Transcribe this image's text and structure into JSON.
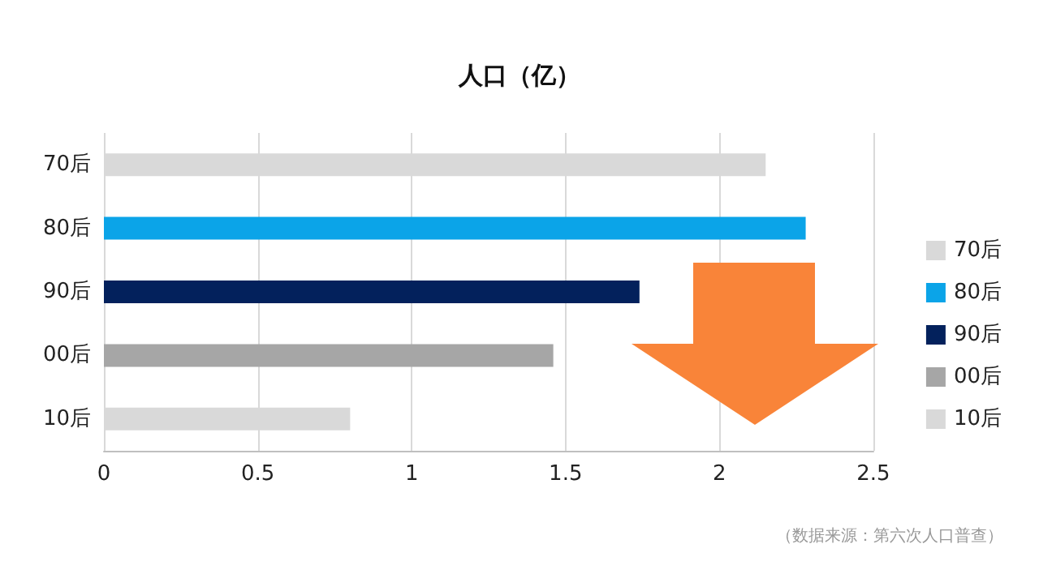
{
  "chart_data": {
    "type": "bar",
    "orientation": "horizontal",
    "title": "人口（亿）",
    "categories": [
      "70后",
      "80后",
      "90后",
      "00后",
      "10后"
    ],
    "series": [
      {
        "name": "70后",
        "color": "#d9d9d9",
        "values": [
          2.15,
          null,
          null,
          null,
          null
        ]
      },
      {
        "name": "80后",
        "color": "#0ba4e8",
        "values": [
          null,
          2.28,
          null,
          null,
          null
        ]
      },
      {
        "name": "90后",
        "color": "#03215c",
        "values": [
          null,
          null,
          1.74,
          null,
          null
        ]
      },
      {
        "name": "00后",
        "color": "#a6a6a6",
        "values": [
          null,
          null,
          null,
          1.46,
          null
        ]
      },
      {
        "name": "10后",
        "color": "#d9d9d9",
        "values": [
          null,
          null,
          null,
          null,
          0.8
        ]
      }
    ],
    "xlim": [
      0,
      2.5
    ],
    "xticks": [
      0,
      0.5,
      1,
      1.5,
      2,
      2.5
    ],
    "grid": "x",
    "legend": "right",
    "annotations": [
      "（数据来源：第六次人口普查）"
    ]
  }
}
